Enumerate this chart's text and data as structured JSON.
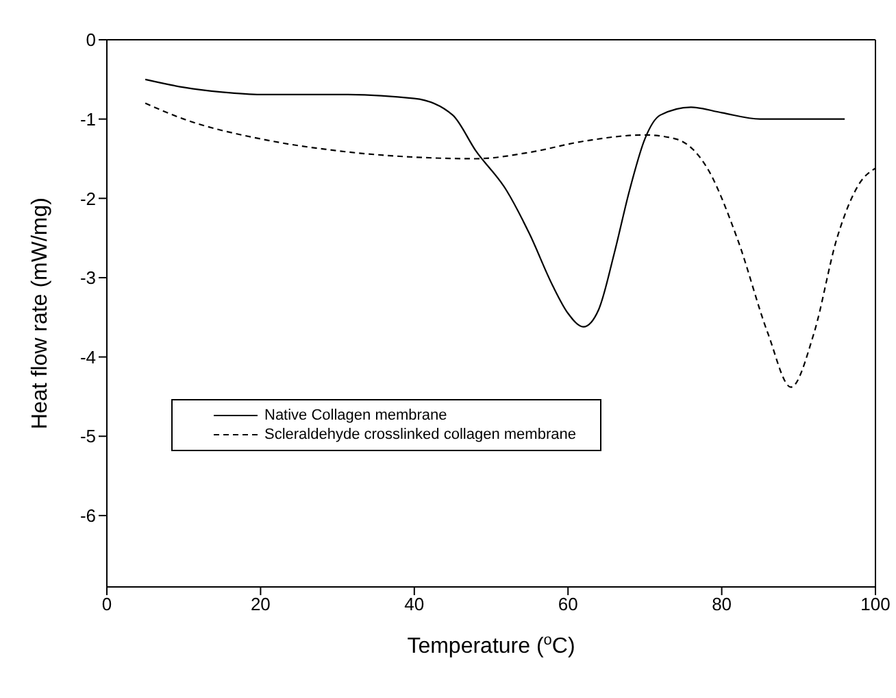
{
  "chart_data": {
    "type": "line",
    "xlabel": "Temperature ($^{o}$C)",
    "ylabel": "Heat flow rate (mW/mg)",
    "xlim": [
      0,
      100
    ],
    "xticks": [
      0,
      20,
      40,
      60,
      80,
      100
    ],
    "ylim": [
      -6.9,
      0
    ],
    "yticks": [
      0,
      -1,
      -2,
      -3,
      -4,
      -5,
      -6
    ],
    "grid": false,
    "legend": "left",
    "marker": "none",
    "series": [
      {
        "name": "Native Collagen membrane",
        "color": "#000000",
        "line_style": "solid",
        "x": [
          5,
          10,
          15,
          20,
          30,
          40,
          45,
          48,
          52,
          55,
          58,
          60,
          62,
          64,
          66,
          68,
          70,
          72,
          76,
          80,
          85,
          90,
          96
        ],
        "values": [
          -0.5,
          -0.6,
          -0.66,
          -0.69,
          -0.69,
          -0.74,
          -0.95,
          -1.4,
          -1.9,
          -2.45,
          -3.1,
          -3.45,
          -3.62,
          -3.4,
          -2.7,
          -1.9,
          -1.25,
          -0.95,
          -0.85,
          -0.92,
          -1.0,
          -1.0,
          -1.0
        ]
      },
      {
        "name": "Scleraldehyde crosslinked collagen membrane",
        "color": "#000000",
        "line_style": "dashed",
        "x": [
          5,
          10,
          20,
          30,
          40,
          48,
          55,
          62,
          70,
          74,
          78,
          82,
          86,
          89,
          92,
          95,
          98,
          100
        ],
        "values": [
          -0.8,
          -1.0,
          -1.25,
          -1.4,
          -1.48,
          -1.5,
          -1.42,
          -1.28,
          -1.2,
          -1.25,
          -1.6,
          -2.5,
          -3.7,
          -4.38,
          -3.7,
          -2.5,
          -1.8,
          -1.62
        ]
      }
    ]
  }
}
